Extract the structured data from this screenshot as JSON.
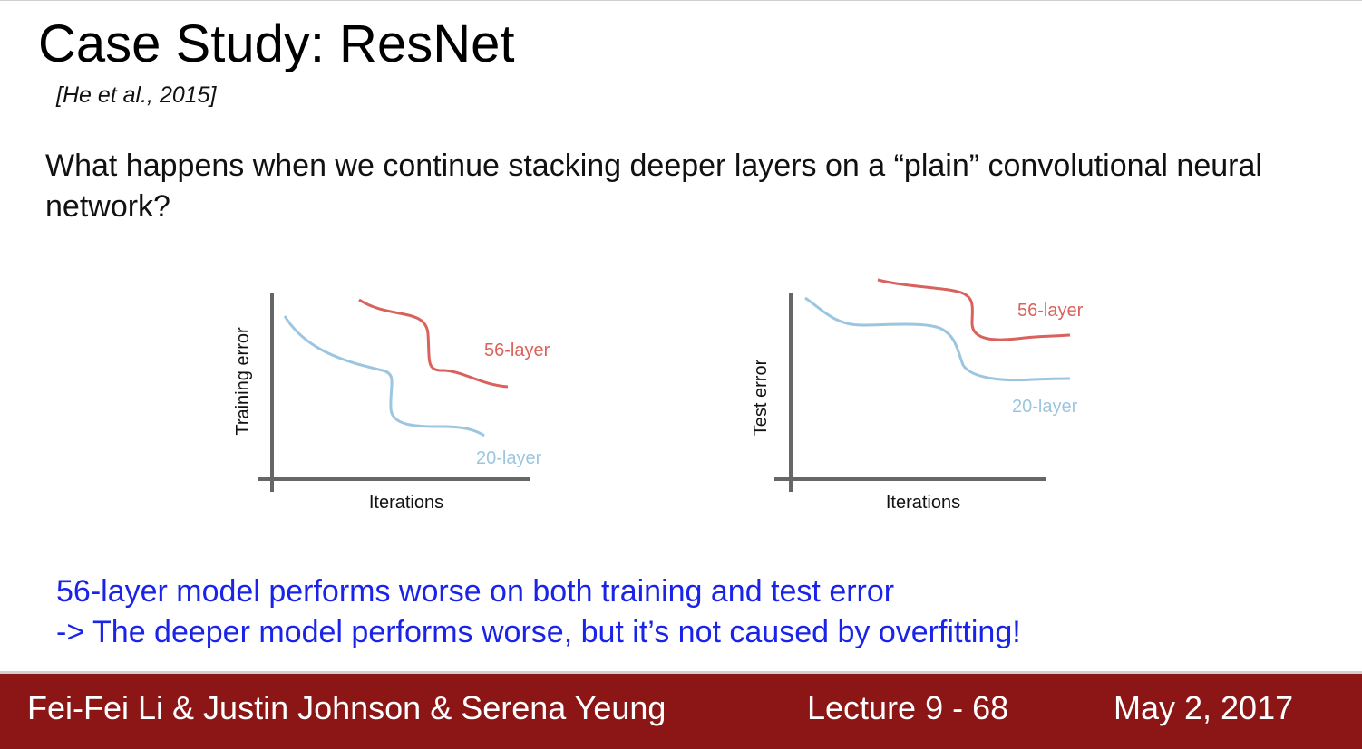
{
  "slide": {
    "title": "Case Study: ResNet",
    "citation": "[He et al., 2015]",
    "question": "What happens when we continue stacking deeper layers on a “plain” convolutional neural network?",
    "conclusion_line1": "56-layer model performs worse on both training and test error",
    "conclusion_line2": "-> The deeper model performs worse, but it’s not caused by overfitting!"
  },
  "footer": {
    "authors": "Fei-Fei Li & Justin Johnson & Serena Yeung",
    "lecture": "Lecture 9 - 68",
    "date": "May 2, 2017"
  },
  "colors": {
    "footer_bg": "#8c1515",
    "conclusion_text": "#1a23e8",
    "series_56": "#d9625c",
    "series_20": "#9cc6e0",
    "axis": "#666666"
  },
  "chart_data": [
    {
      "type": "line",
      "title": "",
      "xlabel": "Iterations",
      "ylabel": "Training error",
      "ticks": "none",
      "series": [
        {
          "name": "56-layer",
          "color": "#d9625c"
        },
        {
          "name": "20-layer",
          "color": "#9cc6e0"
        }
      ]
    },
    {
      "type": "line",
      "title": "",
      "xlabel": "Iterations",
      "ylabel": "Test error",
      "ticks": "none",
      "series": [
        {
          "name": "56-layer",
          "color": "#d9625c"
        },
        {
          "name": "20-layer",
          "color": "#9cc6e0"
        }
      ]
    }
  ]
}
